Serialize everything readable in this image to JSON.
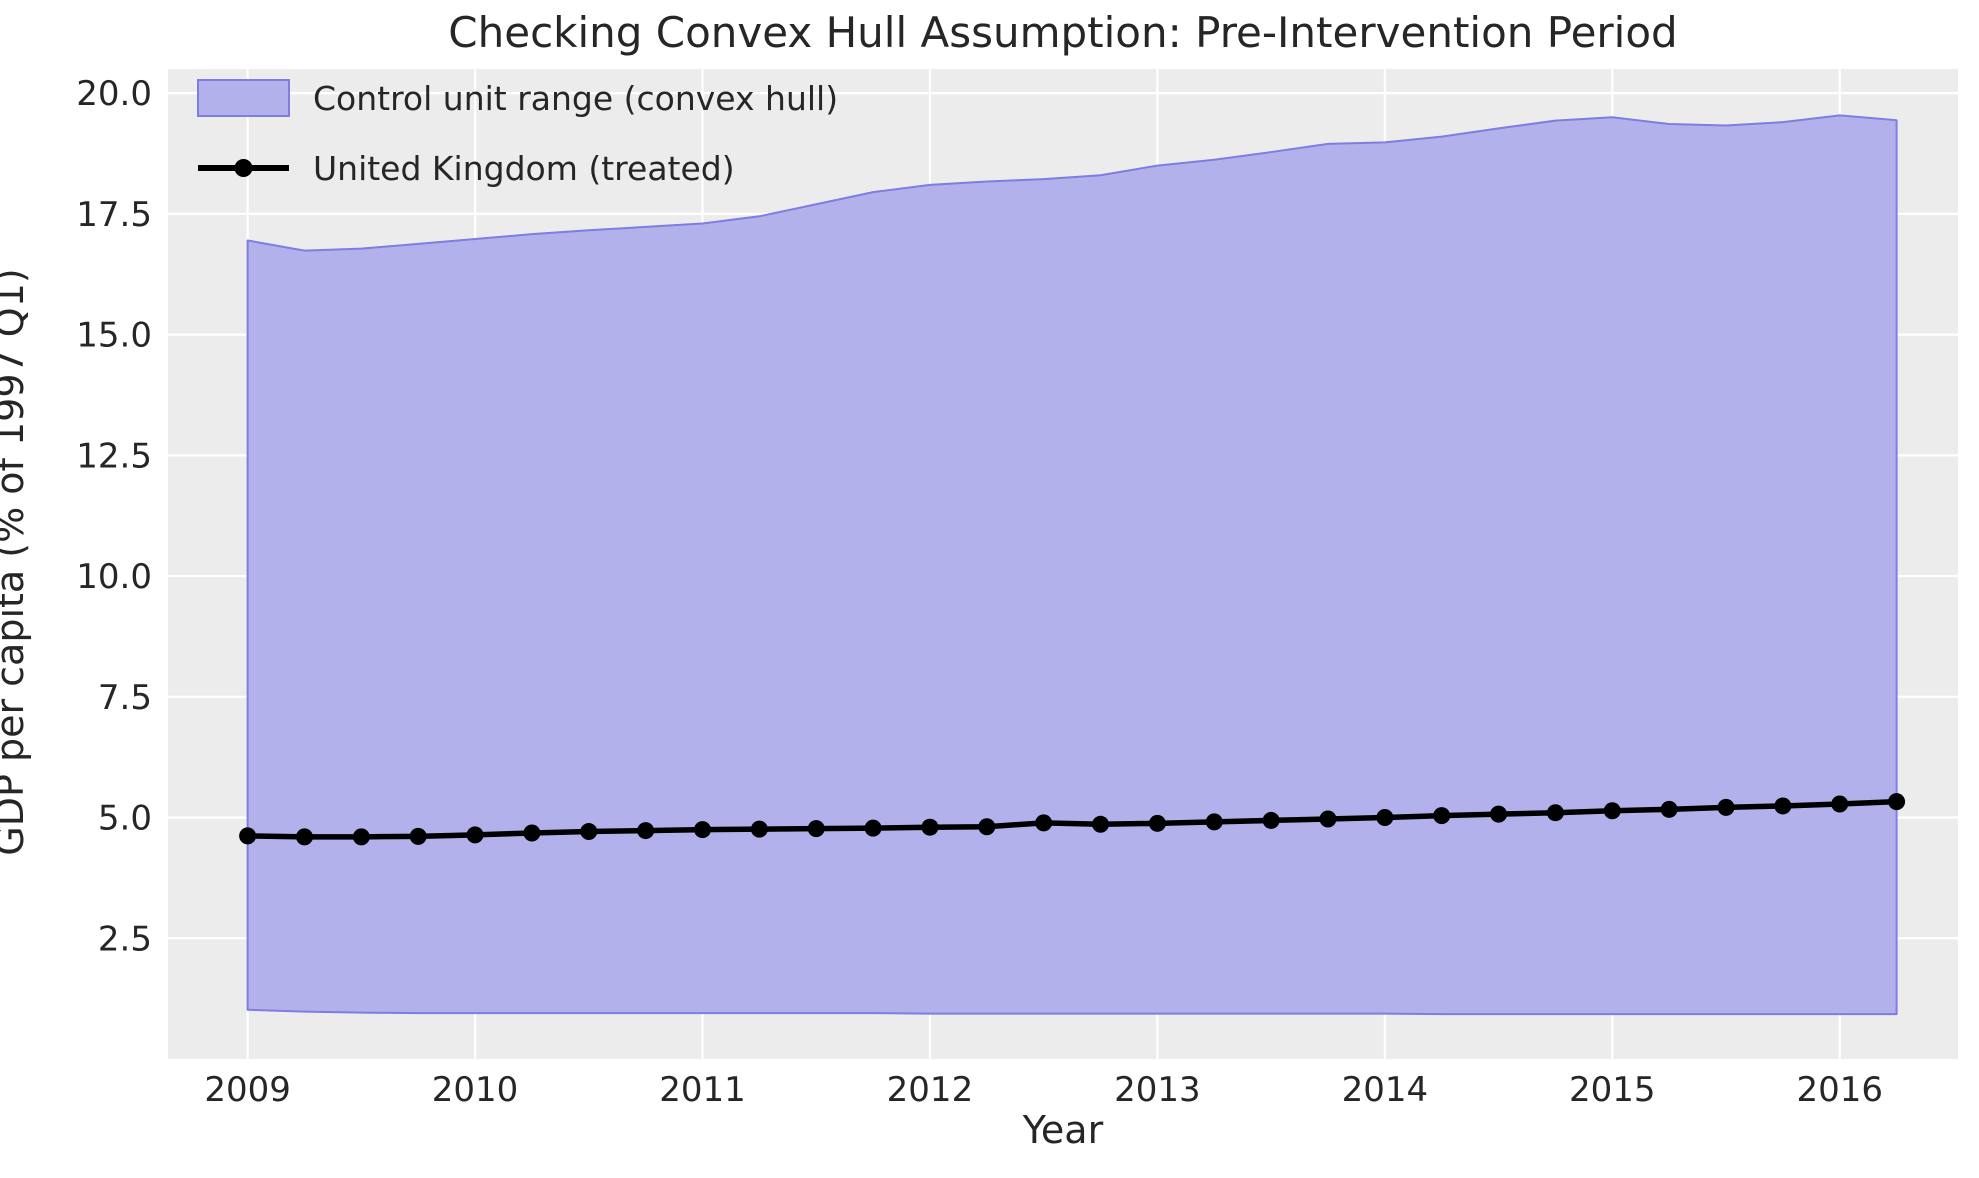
{
  "figure": {
    "title": "Checking Convex Hull Assumption: Pre-Intervention Period",
    "xlabel": "Year",
    "ylabel": "GDP per capita (% of 1997 Q1)"
  },
  "legend": {
    "items": [
      {
        "label": "Control unit range (convex hull)",
        "marker": "patch"
      },
      {
        "label": "United Kingdom (treated)",
        "marker": "line-dot"
      }
    ]
  },
  "colors": {
    "band_fill": "#b2b1ec",
    "band_edge": "#7d7de2",
    "treated_line": "#000000",
    "plot_bg": "#ececec",
    "grid": "#ffffff",
    "text": "#262626"
  },
  "chart_data": {
    "type": "area",
    "title": "Checking Convex Hull Assumption: Pre-Intervention Period",
    "xlabel": "Year",
    "ylabel": "GDP per capita (% of 1997 Q1)",
    "x": [
      2009.0,
      2009.25,
      2009.5,
      2009.75,
      2010.0,
      2010.25,
      2010.5,
      2010.75,
      2011.0,
      2011.25,
      2011.5,
      2011.75,
      2012.0,
      2012.25,
      2012.5,
      2012.75,
      2013.0,
      2013.25,
      2013.5,
      2013.75,
      2014.0,
      2014.25,
      2014.5,
      2014.75,
      2015.0,
      2015.25,
      2015.5,
      2015.75,
      2016.0,
      2016.25
    ],
    "series": [
      {
        "name": "Control unit range upper bound",
        "values": [
          16.95,
          16.74,
          16.78,
          16.88,
          16.98,
          17.08,
          17.16,
          17.23,
          17.3,
          17.45,
          17.7,
          17.95,
          18.1,
          18.17,
          18.22,
          18.3,
          18.5,
          18.62,
          18.78,
          18.95,
          18.98,
          19.1,
          19.27,
          19.43,
          19.5,
          19.36,
          19.33,
          19.4,
          19.54,
          19.44
        ]
      },
      {
        "name": "Control unit range lower bound",
        "values": [
          1.02,
          0.98,
          0.96,
          0.95,
          0.95,
          0.95,
          0.95,
          0.95,
          0.95,
          0.95,
          0.95,
          0.95,
          0.94,
          0.94,
          0.94,
          0.94,
          0.94,
          0.94,
          0.94,
          0.94,
          0.94,
          0.93,
          0.93,
          0.93,
          0.93,
          0.93,
          0.93,
          0.93,
          0.93,
          0.93
        ]
      },
      {
        "name": "United Kingdom (treated)",
        "values": [
          4.62,
          4.6,
          4.6,
          4.61,
          4.64,
          4.68,
          4.71,
          4.73,
          4.75,
          4.76,
          4.77,
          4.78,
          4.8,
          4.81,
          4.89,
          4.86,
          4.88,
          4.91,
          4.94,
          4.97,
          5.0,
          5.04,
          5.07,
          5.1,
          5.14,
          5.17,
          5.21,
          5.24,
          5.28,
          5.33
        ]
      }
    ],
    "x_ticks": [
      2009,
      2010,
      2011,
      2012,
      2013,
      2014,
      2015,
      2016
    ],
    "y_ticks": [
      2.5,
      5.0,
      7.5,
      10.0,
      12.5,
      15.0,
      17.5,
      20.0
    ],
    "xlim": [
      2008.65,
      2016.52
    ],
    "ylim": [
      0,
      20.5
    ],
    "grid": true,
    "legend_position": "upper-left"
  }
}
